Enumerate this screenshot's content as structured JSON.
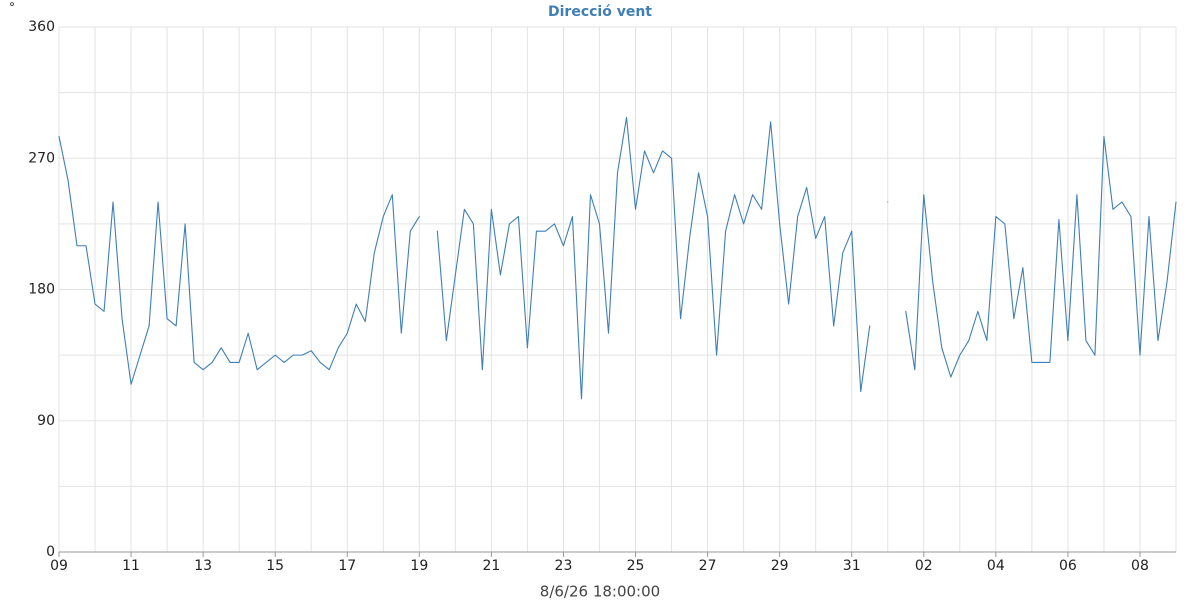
{
  "chart_data": {
    "type": "line",
    "title": "Direcció vent",
    "y_unit": "°",
    "x_label": "8/6/26 18:00:00",
    "categories": [
      "09",
      null,
      null,
      null,
      null,
      null,
      null,
      null,
      "11",
      null,
      null,
      null,
      null,
      null,
      null,
      null,
      "13",
      null,
      null,
      null,
      null,
      null,
      null,
      null,
      "15",
      null,
      null,
      null,
      null,
      null,
      null,
      null,
      "17",
      null,
      null,
      null,
      null,
      null,
      null,
      null,
      "19",
      null,
      null,
      null,
      null,
      null,
      null,
      null,
      "21",
      null,
      null,
      null,
      null,
      null,
      null,
      null,
      "23",
      null,
      null,
      null,
      null,
      null,
      null,
      null,
      "25",
      null,
      null,
      null,
      null,
      null,
      null,
      null,
      "27",
      null,
      null,
      null,
      null,
      null,
      null,
      null,
      "29",
      null,
      null,
      null,
      null,
      null,
      null,
      null,
      "31",
      null,
      null,
      null,
      null,
      null,
      null,
      null,
      "02",
      null,
      null,
      null,
      null,
      null,
      null,
      null,
      "04",
      null,
      null,
      null,
      null,
      null,
      null,
      null,
      "06",
      null,
      null,
      null,
      null,
      null,
      null,
      null,
      "08",
      null,
      null,
      null,
      null
    ],
    "series": [
      {
        "name": "Direcció vent",
        "color": "#3f7fb5",
        "values": [
          285,
          255,
          210,
          210,
          170,
          165,
          240,
          160,
          115,
          135,
          155,
          240,
          160,
          155,
          225,
          130,
          125,
          130,
          140,
          130,
          130,
          150,
          125,
          130,
          135,
          130,
          135,
          135,
          138,
          130,
          125,
          140,
          150,
          170,
          158,
          205,
          230,
          245,
          150,
          220,
          230,
          null,
          220,
          145,
          190,
          235,
          225,
          125,
          235,
          190,
          225,
          230,
          140,
          220,
          220,
          225,
          210,
          230,
          105,
          245,
          225,
          150,
          260,
          298,
          235,
          275,
          260,
          275,
          270,
          160,
          215,
          260,
          230,
          135,
          220,
          245,
          225,
          245,
          235,
          295,
          225,
          170,
          230,
          250,
          215,
          230,
          155,
          205,
          220,
          110,
          155,
          null,
          240,
          null,
          165,
          125,
          245,
          185,
          140,
          120,
          135,
          145,
          165,
          145,
          230,
          225,
          160,
          195,
          130,
          130,
          130,
          228,
          145,
          245,
          145,
          135,
          285,
          235,
          240,
          230,
          135,
          230,
          145,
          185,
          240
        ]
      }
    ],
    "ylim": [
      0,
      360
    ],
    "yticks": [
      0,
      90,
      180,
      270,
      360
    ],
    "grid": true
  }
}
